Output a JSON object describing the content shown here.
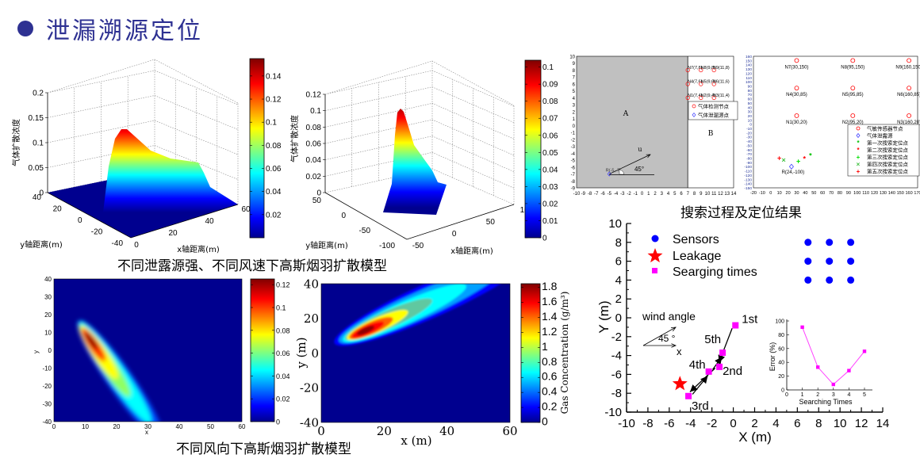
{
  "slide": {
    "title": "泄漏溯源定位",
    "caption_top": "不同泄露源强、不同风速下高斯烟羽扩散模型",
    "caption_bottom": "不同风向下高斯烟羽扩散模型",
    "caption_right": "搜索过程及定位结果"
  },
  "colors": {
    "title": "#2e3192",
    "sensor": "#0000ff",
    "leakage": "#ff0000",
    "search": "#ff00ff",
    "region_a": "#c0c0c0"
  },
  "chart_data": [
    {
      "type": "surface",
      "zlabel": "气体扩散浓度",
      "xlabel": "x轴距离(m)",
      "ylabel": "y轴距离(m)",
      "zticks": [
        "0",
        "0.05",
        "0.1",
        "0.15",
        "0.2"
      ],
      "yticks": [
        "40",
        "20",
        "0",
        "-20",
        "-40"
      ],
      "xticks": [
        "0",
        "20",
        "40",
        "60"
      ],
      "zlim": [
        0,
        0.2
      ],
      "peak_z": 0.13,
      "colorbar": {
        "ticks": [
          "0.02",
          "0.04",
          "0.06",
          "0.08",
          "0.1",
          "0.12",
          "0.14"
        ],
        "range": [
          0,
          0.155
        ]
      }
    },
    {
      "type": "surface",
      "zlabel": "气体扩散浓度",
      "xlabel": "x轴距离(m)",
      "ylabel": "y轴距离(m)",
      "zticks": [
        "0",
        "0.02",
        "0.04",
        "0.06",
        "0.08",
        "0.1",
        "0.12"
      ],
      "yticks": [
        "50",
        "0",
        "-50",
        "-100"
      ],
      "xticks": [
        "-50",
        "0",
        "50",
        "100"
      ],
      "zlim": [
        0,
        0.12
      ],
      "peak_z": 0.1,
      "colorbar": {
        "ticks": [
          "0",
          "0.01",
          "0.02",
          "0.03",
          "0.04",
          "0.05",
          "0.06",
          "0.07",
          "0.08",
          "0.09",
          "0.1"
        ],
        "range": [
          0,
          0.104
        ]
      }
    },
    {
      "type": "heatmap",
      "xlabel": "x",
      "ylabel": "y",
      "xticks": [
        "0",
        "10",
        "20",
        "30",
        "40",
        "50",
        "60"
      ],
      "yticks": [
        "-40",
        "-30",
        "-20",
        "-10",
        "0",
        "10",
        "20",
        "30",
        "40"
      ],
      "xlim": [
        0,
        60
      ],
      "ylim": [
        -40,
        40
      ],
      "peak": {
        "x": 12,
        "y": -17
      },
      "colorbar": {
        "ticks": [
          "0",
          "0.02",
          "0.04",
          "0.06",
          "0.08",
          "0.1",
          "0.12"
        ],
        "range": [
          0,
          0.125
        ]
      }
    },
    {
      "type": "heatmap",
      "xlabel": "x (m)",
      "ylabel": "y (m)",
      "xticks": [
        "0",
        "20",
        "40",
        "60"
      ],
      "yticks": [
        "-40",
        "-20",
        "0",
        "20",
        "40"
      ],
      "xlim": [
        0,
        60
      ],
      "ylim": [
        -40,
        40
      ],
      "peak": {
        "x": 14,
        "y": 13
      },
      "colorbar": {
        "ticks": [
          "0",
          "0.2",
          "0.4",
          "0.6",
          "0.8",
          "1",
          "1.2",
          "1.4",
          "1.6",
          "1.8"
        ],
        "range": [
          0,
          1.85
        ],
        "label": "Gas Concentration (g/m³)"
      }
    },
    {
      "type": "scatter",
      "xlim": [
        -10,
        14
      ],
      "ylim": [
        -9,
        10
      ],
      "xticks": [
        "-10",
        "-9",
        "-8",
        "-7",
        "-6",
        "-5",
        "-4",
        "-3",
        "-2",
        "-1",
        "0",
        "1",
        "2",
        "3",
        "4",
        "5",
        "6",
        "7",
        "8",
        "9",
        "10",
        "11",
        "12",
        "13",
        "14"
      ],
      "yticks": [
        "-9",
        "-8",
        "-7",
        "-6",
        "-5",
        "-4",
        "-3",
        "-2",
        "-1",
        "0",
        "1",
        "2",
        "3",
        "4",
        "5",
        "6",
        "7",
        "8",
        "9",
        "10"
      ],
      "regions": [
        "A",
        "B"
      ],
      "sensors": [
        {
          "label": "N1(7,4)",
          "x": 7,
          "y": 4
        },
        {
          "label": "N2(9,4)",
          "x": 9,
          "y": 4
        },
        {
          "label": "N3(11,4)",
          "x": 11,
          "y": 4
        },
        {
          "label": "N4(7,6)",
          "x": 7,
          "y": 6
        },
        {
          "label": "N5(9,6)",
          "x": 9,
          "y": 6
        },
        {
          "label": "N6(11,6)",
          "x": 11,
          "y": 6
        },
        {
          "label": "N7(7,8)",
          "x": 7,
          "y": 8
        },
        {
          "label": "N8(9,8)",
          "x": 9,
          "y": 8
        },
        {
          "label": "N9(11,8)",
          "x": 11,
          "y": 8
        }
      ],
      "source": {
        "label": "R(-5,-7)",
        "x": -5,
        "y": -7
      },
      "wind": {
        "label": "u",
        "angle_label": "45°"
      },
      "legend": [
        "气体检测节点",
        "气体泄漏源点"
      ]
    },
    {
      "type": "scatter",
      "xlim": [
        -20,
        170
      ],
      "ylim": [
        -150,
        160
      ],
      "xticks": [
        "-20",
        "-10",
        "0",
        "10",
        "20",
        "30",
        "40",
        "50",
        "60",
        "70",
        "80",
        "90",
        "100",
        "110",
        "120",
        "130",
        "140",
        "150",
        "160",
        "170"
      ],
      "yticks": [
        "-150",
        "-140",
        "-130",
        "-120",
        "-110",
        "-100",
        "-90",
        "-80",
        "-70",
        "-60",
        "-50",
        "-40",
        "-30",
        "-20",
        "-10",
        "0",
        "10",
        "20",
        "30",
        "40",
        "50",
        "60",
        "70",
        "80",
        "90",
        "100",
        "110",
        "120",
        "130",
        "140",
        "150",
        "160"
      ],
      "sensors": [
        {
          "label": "N1(30,20)",
          "x": 30,
          "y": 20
        },
        {
          "label": "N2(95,20)",
          "x": 95,
          "y": 20
        },
        {
          "label": "N3(160,20)",
          "x": 160,
          "y": 20
        },
        {
          "label": "N4(30,85)",
          "x": 30,
          "y": 85
        },
        {
          "label": "N5(95,85)",
          "x": 95,
          "y": 85
        },
        {
          "label": "N6(160,85)",
          "x": 160,
          "y": 85
        },
        {
          "label": "N7(30,150)",
          "x": 30,
          "y": 150
        },
        {
          "label": "N8(95,150)",
          "x": 95,
          "y": 150
        },
        {
          "label": "N9(160,150)",
          "x": 160,
          "y": 150
        }
      ],
      "source": {
        "label": "R(24,-100)",
        "x": 24,
        "y": -100
      },
      "search_points": [
        {
          "series": "第一次搜索定位点",
          "x": 46,
          "y": -74,
          "marker": "*",
          "color": "#00c000"
        },
        {
          "series": "第二次搜索定位点",
          "x": 39,
          "y": -82,
          "marker": "*",
          "color": "#ff0000"
        },
        {
          "series": "第三次搜索定位点",
          "x": 32,
          "y": -87,
          "marker": "+",
          "color": "#00e000"
        },
        {
          "series": "第四次搜索定位点",
          "x": 15,
          "y": -85,
          "marker": "×",
          "color": "#40c040"
        },
        {
          "series": "第五次搜索定位点",
          "x": 10,
          "y": -80,
          "marker": "+",
          "color": "#ff0000"
        }
      ],
      "legend": [
        "气敏传感器节点",
        "气体泄露源",
        "第一次搜索定位点",
        "第二次搜索定位点",
        "第三次搜索定位点",
        "第四次搜索定位点",
        "第五次搜索定位点"
      ]
    },
    {
      "type": "scatter",
      "xlabel": "X (m)",
      "ylabel": "Y (m)",
      "xlim": [
        -10,
        14
      ],
      "ylim": [
        -10,
        10
      ],
      "xticks": [
        "-10",
        "-8",
        "-6",
        "-4",
        "-2",
        "0",
        "2",
        "4",
        "6",
        "8",
        "10",
        "12",
        "14"
      ],
      "yticks": [
        "-10",
        "-8",
        "-6",
        "-4",
        "-2",
        "0",
        "2",
        "4",
        "6",
        "8",
        "10"
      ],
      "legend": [
        "Sensors",
        "Leakage",
        "Searging times"
      ],
      "sensors": [
        {
          "x": 7,
          "y": 8
        },
        {
          "x": 9,
          "y": 8
        },
        {
          "x": 11,
          "y": 8
        },
        {
          "x": 7,
          "y": 6
        },
        {
          "x": 9,
          "y": 6
        },
        {
          "x": 11,
          "y": 6
        },
        {
          "x": 7,
          "y": 4
        },
        {
          "x": 9,
          "y": 4
        },
        {
          "x": 11,
          "y": 4
        }
      ],
      "leakage": {
        "x": -5,
        "y": -7
      },
      "searches": [
        {
          "label": "1st",
          "x": 0.2,
          "y": -0.8
        },
        {
          "label": "2nd",
          "x": -1.3,
          "y": -5.2
        },
        {
          "label": "3rd",
          "x": -4.2,
          "y": -8.3
        },
        {
          "label": "4th",
          "x": -2.3,
          "y": -5.7
        },
        {
          "label": "5th",
          "x": -1.0,
          "y": -3.7
        }
      ],
      "wind": {
        "label": "wind angle",
        "angle_label": "45 °",
        "axis_label": "x"
      }
    },
    {
      "type": "line",
      "xlabel": "Searching Times",
      "ylabel": "Error (%)",
      "xlim": [
        0,
        5
      ],
      "ylim": [
        0,
        100
      ],
      "xticks": [
        "0",
        "1",
        "2",
        "3",
        "4",
        "5"
      ],
      "yticks": [
        "0",
        "20",
        "40",
        "60",
        "80",
        "100"
      ],
      "x": [
        1,
        2,
        3,
        4,
        5
      ],
      "y": [
        91,
        33,
        8,
        28,
        56
      ]
    }
  ]
}
